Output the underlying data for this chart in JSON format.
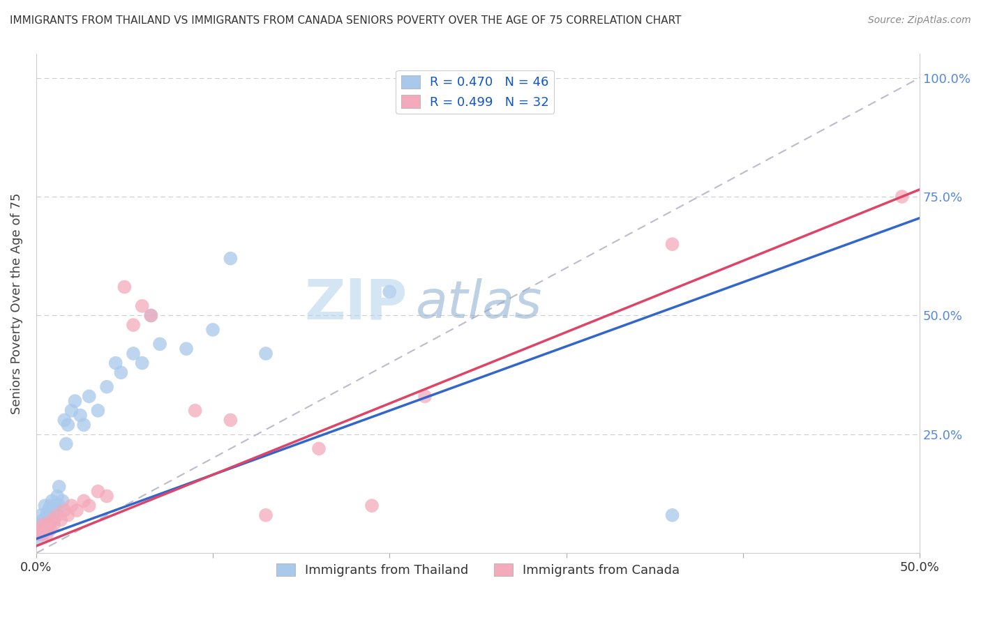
{
  "title": "IMMIGRANTS FROM THAILAND VS IMMIGRANTS FROM CANADA SENIORS POVERTY OVER THE AGE OF 75 CORRELATION CHART",
  "source": "Source: ZipAtlas.com",
  "xlabel": "",
  "ylabel": "Seniors Poverty Over the Age of 75",
  "xlim": [
    0.0,
    0.5
  ],
  "ylim": [
    0.0,
    1.05
  ],
  "legend_r1": "R = 0.470   N = 46",
  "legend_r2": "R = 0.499   N = 32",
  "legend_label1": "Immigrants from Thailand",
  "legend_label2": "Immigrants from Canada",
  "color_thailand": "#A8C8EC",
  "color_canada": "#F4AABB",
  "color_trendline_thailand": "#3366CC",
  "color_trendline_canada": "#DD4466",
  "color_refline": "#BBBBCC",
  "watermark": "ZIPAtlas",
  "background_color": "#FFFFFF",
  "trendline_thailand": [
    0.0,
    0.03,
    1.35
  ],
  "trendline_canada": [
    0.0,
    0.015,
    1.5
  ],
  "thailand_x": [
    0.001,
    0.002,
    0.002,
    0.003,
    0.003,
    0.004,
    0.004,
    0.005,
    0.005,
    0.006,
    0.006,
    0.007,
    0.007,
    0.008,
    0.008,
    0.009,
    0.009,
    0.01,
    0.01,
    0.011,
    0.012,
    0.013,
    0.013,
    0.015,
    0.016,
    0.017,
    0.018,
    0.02,
    0.022,
    0.025,
    0.027,
    0.03,
    0.035,
    0.04,
    0.045,
    0.048,
    0.055,
    0.06,
    0.065,
    0.07,
    0.085,
    0.1,
    0.11,
    0.13,
    0.2,
    0.36
  ],
  "thailand_y": [
    0.03,
    0.04,
    0.06,
    0.05,
    0.08,
    0.04,
    0.07,
    0.06,
    0.1,
    0.05,
    0.08,
    0.06,
    0.09,
    0.07,
    0.1,
    0.08,
    0.11,
    0.07,
    0.09,
    0.1,
    0.12,
    0.1,
    0.14,
    0.11,
    0.28,
    0.23,
    0.27,
    0.3,
    0.32,
    0.29,
    0.27,
    0.33,
    0.3,
    0.35,
    0.4,
    0.38,
    0.42,
    0.4,
    0.5,
    0.44,
    0.43,
    0.47,
    0.62,
    0.42,
    0.55,
    0.08
  ],
  "canada_x": [
    0.001,
    0.002,
    0.003,
    0.004,
    0.005,
    0.006,
    0.007,
    0.008,
    0.009,
    0.01,
    0.012,
    0.014,
    0.016,
    0.018,
    0.02,
    0.023,
    0.027,
    0.03,
    0.035,
    0.04,
    0.05,
    0.055,
    0.06,
    0.065,
    0.09,
    0.11,
    0.13,
    0.16,
    0.19,
    0.22,
    0.36,
    0.49
  ],
  "canada_y": [
    0.04,
    0.05,
    0.04,
    0.06,
    0.05,
    0.04,
    0.06,
    0.05,
    0.07,
    0.06,
    0.08,
    0.07,
    0.09,
    0.08,
    0.1,
    0.09,
    0.11,
    0.1,
    0.13,
    0.12,
    0.56,
    0.48,
    0.52,
    0.5,
    0.3,
    0.28,
    0.08,
    0.22,
    0.1,
    0.33,
    0.65,
    0.75
  ]
}
